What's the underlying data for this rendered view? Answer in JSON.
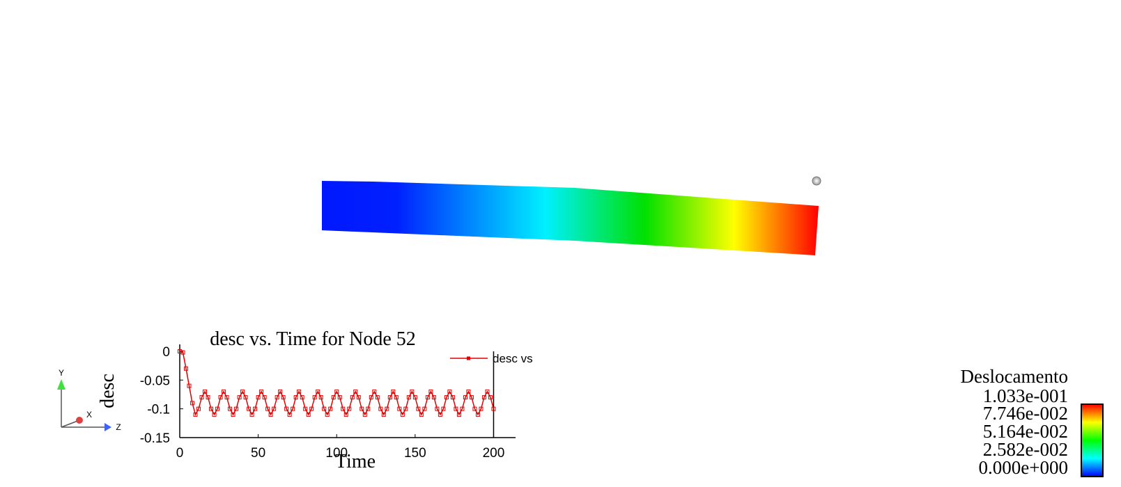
{
  "chart_data": {
    "type": "line",
    "title": "desc vs. Time for Node 52",
    "x_label": "Time",
    "y_label": "desc",
    "x": [
      0,
      2,
      4,
      6,
      8,
      10,
      12,
      14,
      16,
      18,
      20,
      22,
      24,
      26,
      28,
      30,
      32,
      34,
      36,
      38,
      40,
      42,
      44,
      46,
      48,
      50,
      52,
      54,
      56,
      58,
      60,
      62,
      64,
      66,
      68,
      70,
      72,
      74,
      76,
      78,
      80,
      82,
      84,
      86,
      88,
      90,
      92,
      94,
      96,
      98,
      100,
      102,
      104,
      106,
      108,
      110,
      112,
      114,
      116,
      118,
      120,
      122,
      124,
      126,
      128,
      130,
      132,
      134,
      136,
      138,
      140,
      142,
      144,
      146,
      148,
      150,
      152,
      154,
      156,
      158,
      160,
      162,
      164,
      166,
      168,
      170,
      172,
      174,
      176,
      178,
      180,
      182,
      184,
      186,
      188,
      190,
      192,
      194,
      196,
      198,
      200
    ],
    "series": [
      {
        "name": "desc vs",
        "color": "#e00000",
        "values": [
          0,
          -0.002,
          -0.03,
          -0.06,
          -0.09,
          -0.11,
          -0.1,
          -0.08,
          -0.07,
          -0.08,
          -0.1,
          -0.11,
          -0.1,
          -0.08,
          -0.07,
          -0.08,
          -0.1,
          -0.11,
          -0.1,
          -0.08,
          -0.07,
          -0.08,
          -0.1,
          -0.11,
          -0.1,
          -0.08,
          -0.07,
          -0.08,
          -0.1,
          -0.11,
          -0.1,
          -0.08,
          -0.07,
          -0.08,
          -0.1,
          -0.11,
          -0.1,
          -0.08,
          -0.07,
          -0.08,
          -0.1,
          -0.11,
          -0.1,
          -0.08,
          -0.07,
          -0.08,
          -0.1,
          -0.11,
          -0.1,
          -0.08,
          -0.07,
          -0.08,
          -0.1,
          -0.11,
          -0.1,
          -0.08,
          -0.07,
          -0.08,
          -0.1,
          -0.11,
          -0.1,
          -0.08,
          -0.07,
          -0.08,
          -0.1,
          -0.11,
          -0.1,
          -0.08,
          -0.07,
          -0.08,
          -0.1,
          -0.11,
          -0.1,
          -0.08,
          -0.07,
          -0.08,
          -0.1,
          -0.11,
          -0.1,
          -0.08,
          -0.07,
          -0.08,
          -0.1,
          -0.11,
          -0.1,
          -0.08,
          -0.07,
          -0.08,
          -0.1,
          -0.11,
          -0.1,
          -0.08,
          -0.07,
          -0.08,
          -0.1,
          -0.11,
          -0.1,
          -0.08,
          -0.07,
          -0.08,
          -0.1
        ]
      }
    ],
    "xlim": [
      0,
      214
    ],
    "ylim": [
      -0.15,
      0.012
    ],
    "xticks": [
      0,
      50,
      100,
      150,
      200
    ],
    "yticks": [
      0,
      -0.05,
      -0.1,
      -0.15
    ]
  },
  "color_legend": {
    "title": "Deslocamento",
    "labels": [
      "1.033e-001",
      "7.746e-002",
      "5.164e-002",
      "2.582e-002",
      "0.000e+000"
    ]
  },
  "triad": {
    "x": "X",
    "y": "Y",
    "z": "Z"
  }
}
